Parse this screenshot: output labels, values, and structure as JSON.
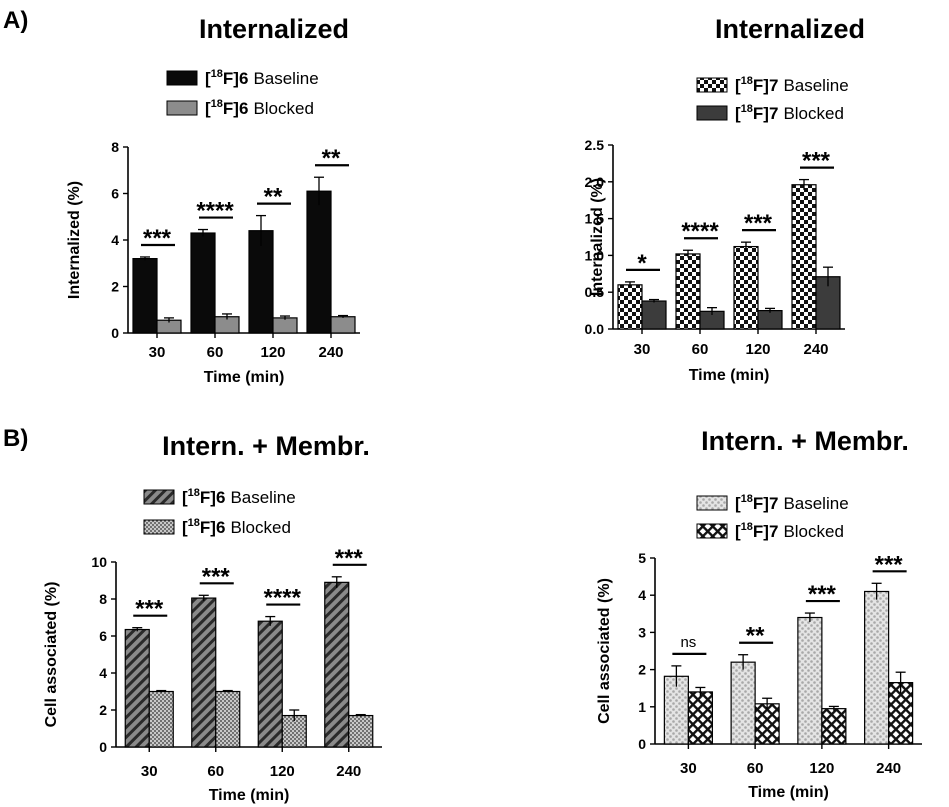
{
  "panels": [
    {
      "label": "A)"
    },
    {
      "label": "B)"
    }
  ],
  "chart_data": [
    {
      "type": "bar",
      "title": "Internalized",
      "xlabel": "Time (min)",
      "ylabel": "Internalized (%)",
      "ylim": [
        0,
        8
      ],
      "yticks": [
        "0",
        "2",
        "4",
        "6",
        "8"
      ],
      "categories": [
        "30",
        "60",
        "120",
        "240"
      ],
      "series": [
        {
          "name_sup": "18",
          "name_compound": "6",
          "name_rest": "Baseline",
          "pattern": "solid-black",
          "values": [
            3.2,
            4.3,
            4.4,
            6.1
          ],
          "errors": [
            0.07,
            0.15,
            0.65,
            0.6
          ]
        },
        {
          "name_sup": "18",
          "name_compound": "6",
          "name_rest": "Blocked",
          "pattern": "solid-gray",
          "values": [
            0.55,
            0.7,
            0.65,
            0.7
          ],
          "errors": [
            0.1,
            0.12,
            0.08,
            0.05
          ]
        }
      ],
      "significance": [
        "***",
        "****",
        "**",
        "**"
      ]
    },
    {
      "type": "bar",
      "title": "Internalized",
      "xlabel": "Time (min)",
      "ylabel": "Internalized (%)",
      "ylim": [
        0,
        2.5
      ],
      "yticks": [
        "0.0",
        "0.5",
        "1.0",
        "1.5",
        "2.0",
        "2.5"
      ],
      "categories": [
        "30",
        "60",
        "120",
        "240"
      ],
      "series": [
        {
          "name_sup": "18",
          "name_compound": "7",
          "name_rest": "Baseline",
          "pattern": "checker",
          "values": [
            0.6,
            1.02,
            1.12,
            1.96
          ],
          "errors": [
            0.04,
            0.05,
            0.06,
            0.07
          ]
        },
        {
          "name_sup": "18",
          "name_compound": "7",
          "name_rest": "Blocked",
          "pattern": "solid-darkgray",
          "values": [
            0.38,
            0.24,
            0.25,
            0.71
          ],
          "errors": [
            0.02,
            0.05,
            0.03,
            0.13
          ]
        }
      ],
      "significance": [
        "*",
        "****",
        "***",
        "***"
      ]
    },
    {
      "type": "bar",
      "title": "Intern. + Membr.",
      "xlabel": "Time (min)",
      "ylabel": "Cell associated (%)",
      "ylim": [
        0,
        10
      ],
      "yticks": [
        "0",
        "2",
        "4",
        "6",
        "8",
        "10"
      ],
      "categories": [
        "30",
        "60",
        "120",
        "240"
      ],
      "series": [
        {
          "name_sup": "18",
          "name_compound": "6",
          "name_rest": "Baseline",
          "pattern": "diagonal",
          "values": [
            6.35,
            8.05,
            6.8,
            8.9
          ],
          "errors": [
            0.1,
            0.15,
            0.25,
            0.3
          ]
        },
        {
          "name_sup": "18",
          "name_compound": "6",
          "name_rest": "Blocked",
          "pattern": "dots",
          "values": [
            3.0,
            3.0,
            1.7,
            1.7
          ],
          "errors": [
            0.05,
            0.05,
            0.3,
            0.05
          ]
        }
      ],
      "significance": [
        "***",
        "***",
        "****",
        "***"
      ]
    },
    {
      "type": "bar",
      "title": "Intern. + Membr.",
      "xlabel": "Time (min)",
      "ylabel": "Cell associated (%)",
      "ylim": [
        0,
        5
      ],
      "yticks": [
        "0",
        "1",
        "2",
        "3",
        "4",
        "5"
      ],
      "categories": [
        "30",
        "60",
        "120",
        "240"
      ],
      "series": [
        {
          "name_sup": "18",
          "name_compound": "7",
          "name_rest": "Baseline",
          "pattern": "lightdots",
          "values": [
            1.82,
            2.2,
            3.4,
            4.1
          ],
          "errors": [
            0.28,
            0.2,
            0.12,
            0.22
          ]
        },
        {
          "name_sup": "18",
          "name_compound": "7",
          "name_rest": "Blocked",
          "pattern": "crosshatch",
          "values": [
            1.4,
            1.08,
            0.95,
            1.65
          ],
          "errors": [
            0.12,
            0.15,
            0.06,
            0.28
          ]
        }
      ],
      "significance": [
        "ns",
        "**",
        "***",
        "***"
      ]
    }
  ]
}
